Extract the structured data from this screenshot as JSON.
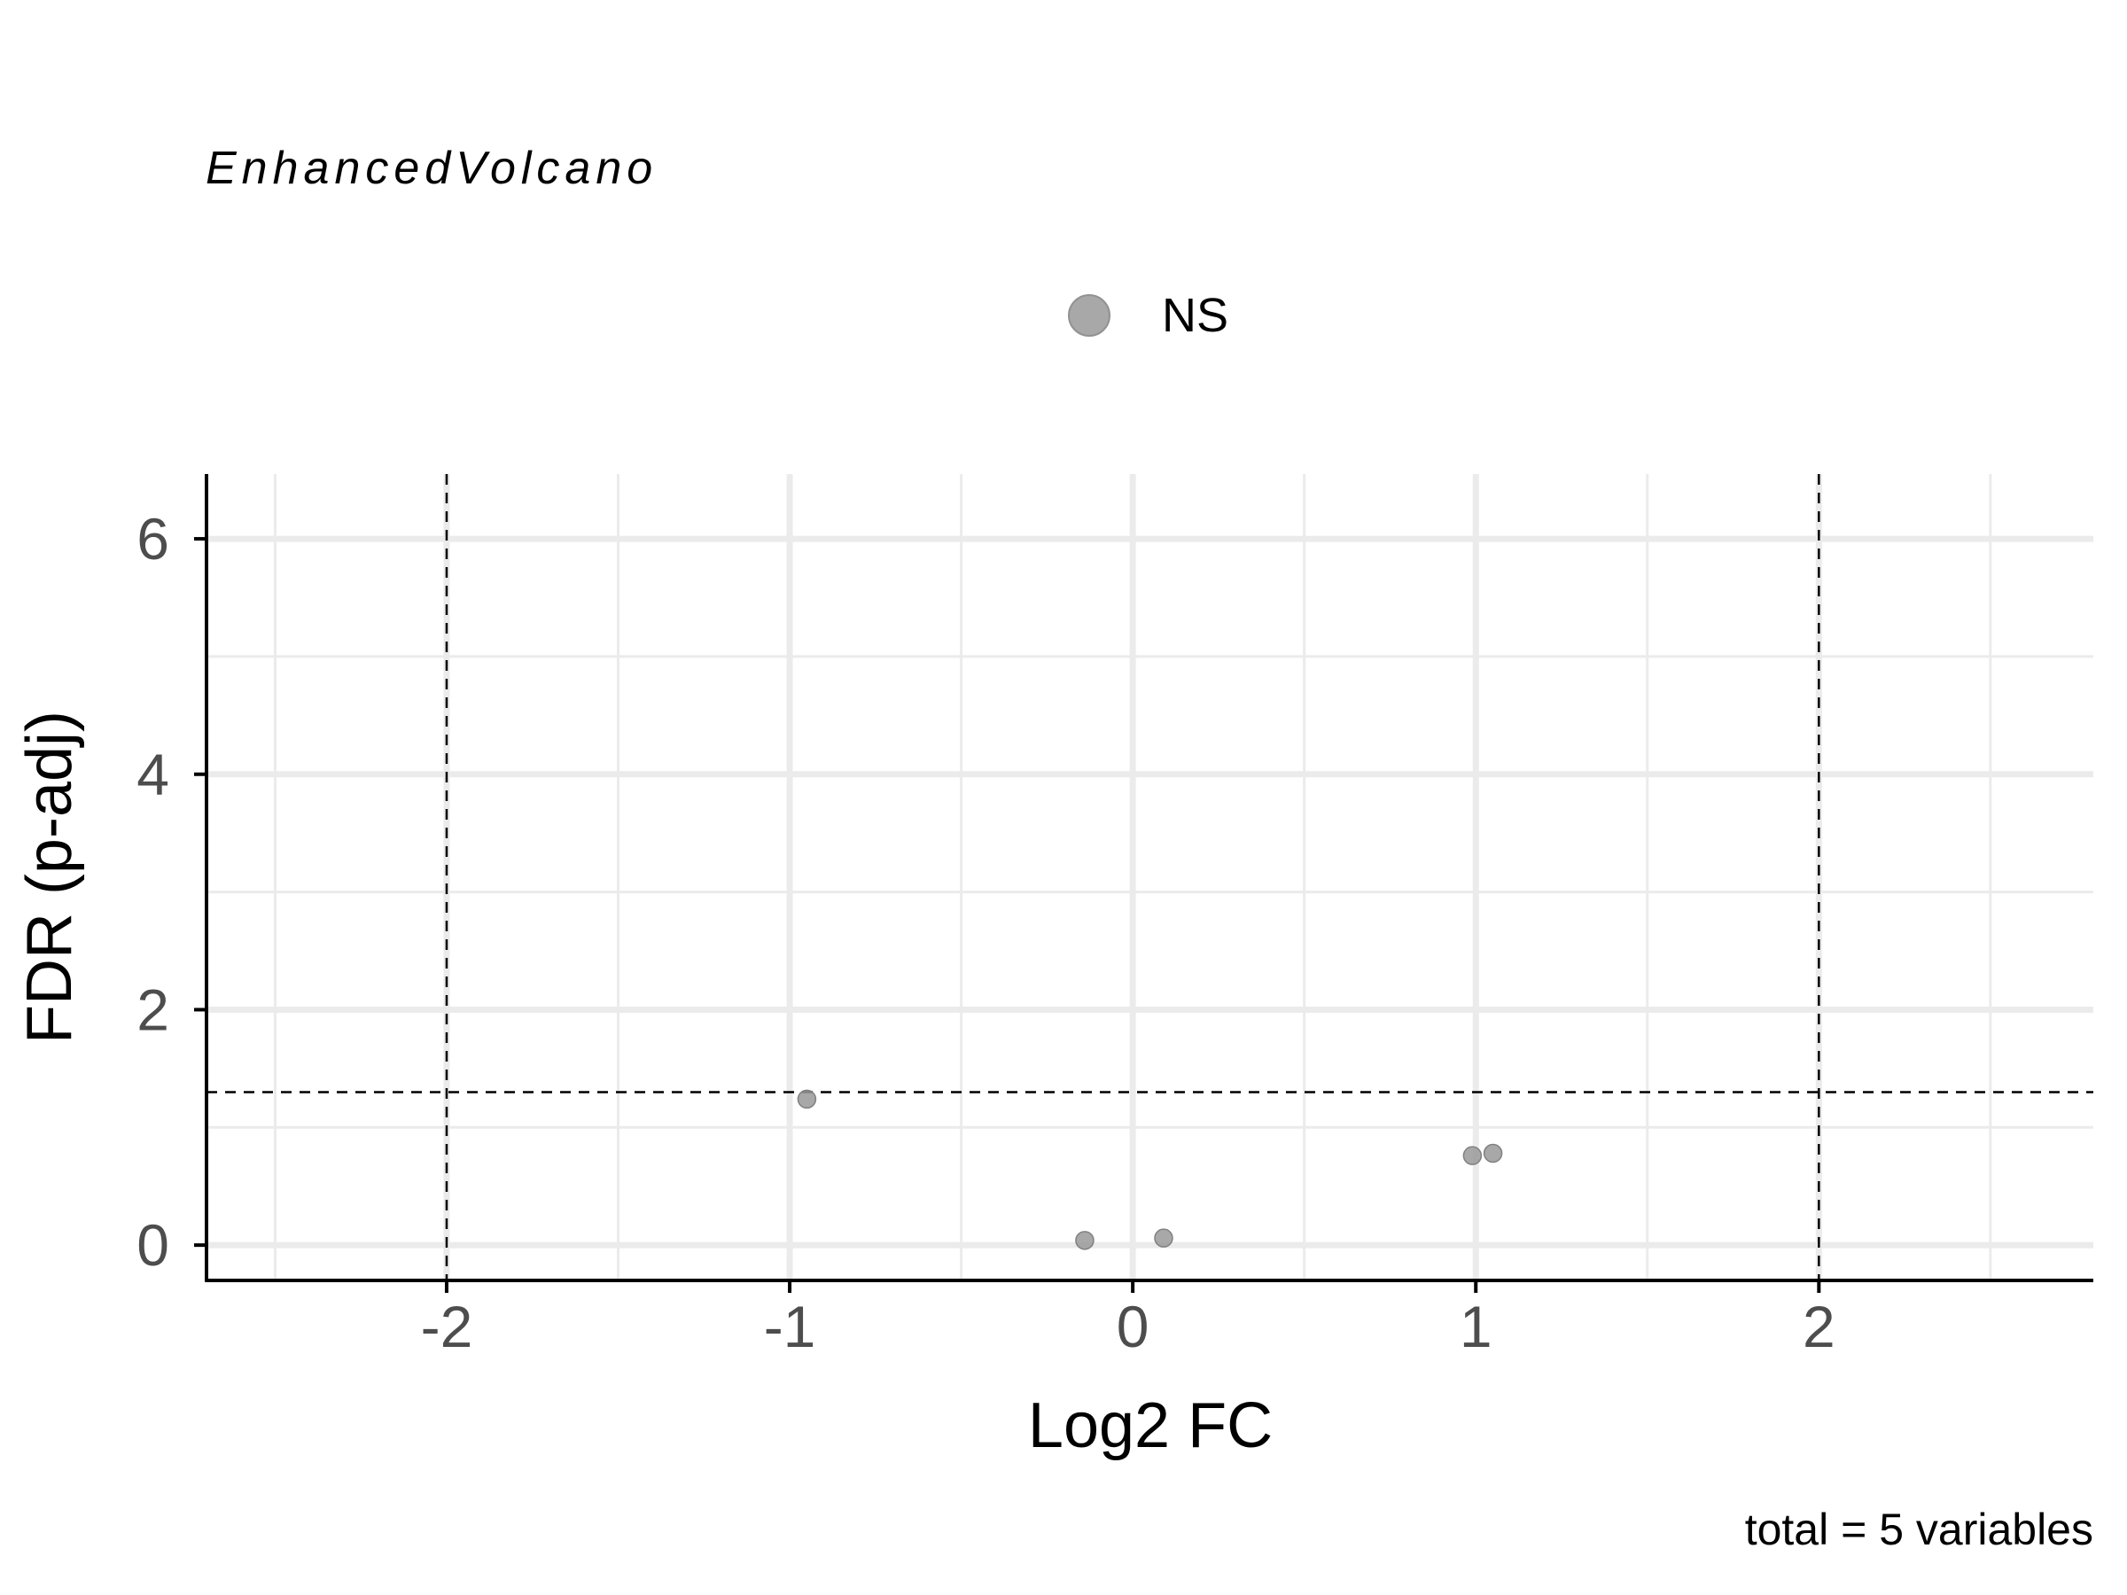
{
  "chart_data": {
    "type": "scatter",
    "title": "",
    "subtitle": "EnhancedVolcano",
    "xlabel": "Log2 FC",
    "ylabel": "FDR (p-adj)",
    "caption": "total = 5 variables",
    "xlim": [
      -2.7,
      2.8
    ],
    "ylim": [
      -0.3,
      6.55
    ],
    "x_ticks": [
      -2,
      -1,
      0,
      1,
      2
    ],
    "x_tick_labels": [
      "-2",
      "-1",
      "0",
      "1",
      "2"
    ],
    "y_ticks": [
      0,
      2,
      4,
      6
    ],
    "y_tick_labels": [
      "0",
      "2",
      "4",
      "6"
    ],
    "grid": true,
    "legend": {
      "placement": "top",
      "entries": [
        {
          "label": "NS",
          "color": "#999999"
        }
      ]
    },
    "cutoff_lines": {
      "vertical": [
        -2,
        2
      ],
      "horizontal": [
        1.3
      ],
      "style": "dashed"
    },
    "series": [
      {
        "name": "NS",
        "color": "#999999",
        "points": [
          {
            "x": -0.95,
            "y": 1.24
          },
          {
            "x": -0.14,
            "y": 0.04
          },
          {
            "x": 0.09,
            "y": 0.06
          },
          {
            "x": 0.99,
            "y": 0.76
          },
          {
            "x": 1.05,
            "y": 0.78
          }
        ]
      }
    ]
  }
}
